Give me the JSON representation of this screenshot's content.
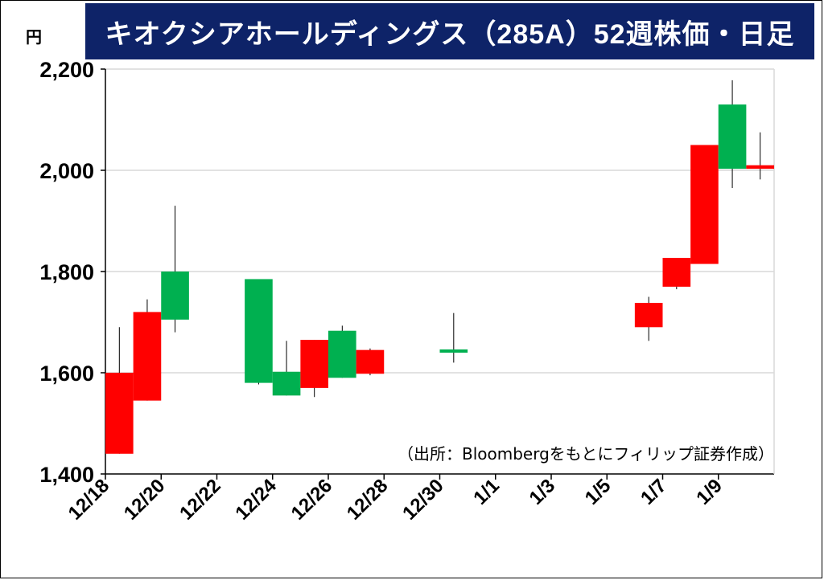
{
  "unit_label": "円",
  "chart_data": {
    "type": "candlestick",
    "title": "キオクシアホールディングス（285A）52週株価・日足",
    "ylabel": "円",
    "ylim": [
      1400,
      2200
    ],
    "y_ticks": [
      1400,
      1600,
      1800,
      2000,
      2200
    ],
    "y_tick_labels": [
      "1,400",
      "1,600",
      "1,800",
      "2,000",
      "2,200"
    ],
    "x_ticks": [
      "12/18",
      "12/20",
      "12/22",
      "12/24",
      "12/26",
      "12/28",
      "12/30",
      "1/1",
      "1/3",
      "1/5",
      "1/7",
      "1/9"
    ],
    "grid": true,
    "up_color": "#00b050",
    "down_color": "#ff0000",
    "candles": [
      {
        "date": "12/18",
        "open": 1600,
        "high": 1690,
        "low": 1440,
        "close": 1440
      },
      {
        "date": "12/19",
        "open": 1720,
        "high": 1745,
        "low": 1545,
        "close": 1545
      },
      {
        "date": "12/20",
        "open": 1705,
        "high": 1930,
        "low": 1680,
        "close": 1800
      },
      {
        "date": "12/23",
        "open": 1580,
        "high": 1785,
        "low": 1577,
        "close": 1785
      },
      {
        "date": "12/24",
        "open": 1555,
        "high": 1663,
        "low": 1555,
        "close": 1602
      },
      {
        "date": "12/25",
        "open": 1665,
        "high": 1665,
        "low": 1552,
        "close": 1570
      },
      {
        "date": "12/26",
        "open": 1590,
        "high": 1693,
        "low": 1590,
        "close": 1683
      },
      {
        "date": "12/27",
        "open": 1645,
        "high": 1648,
        "low": 1595,
        "close": 1598
      },
      {
        "date": "12/30",
        "open": 1640,
        "high": 1718,
        "low": 1620,
        "close": 1646
      },
      {
        "date": "1/6",
        "open": 1738,
        "high": 1750,
        "low": 1663,
        "close": 1690
      },
      {
        "date": "1/7",
        "open": 1827,
        "high": 1827,
        "low": 1765,
        "close": 1770
      },
      {
        "date": "1/8",
        "open": 2050,
        "high": 2050,
        "low": 1815,
        "close": 1815
      },
      {
        "date": "1/9",
        "open": 2003,
        "high": 2178,
        "low": 1965,
        "close": 2130
      },
      {
        "date": "1/10",
        "open": 2010,
        "high": 2075,
        "low": 1982,
        "close": 2003
      }
    ],
    "annotation": "（出所：Bloombergをもとにフィリップ証券作成）"
  }
}
